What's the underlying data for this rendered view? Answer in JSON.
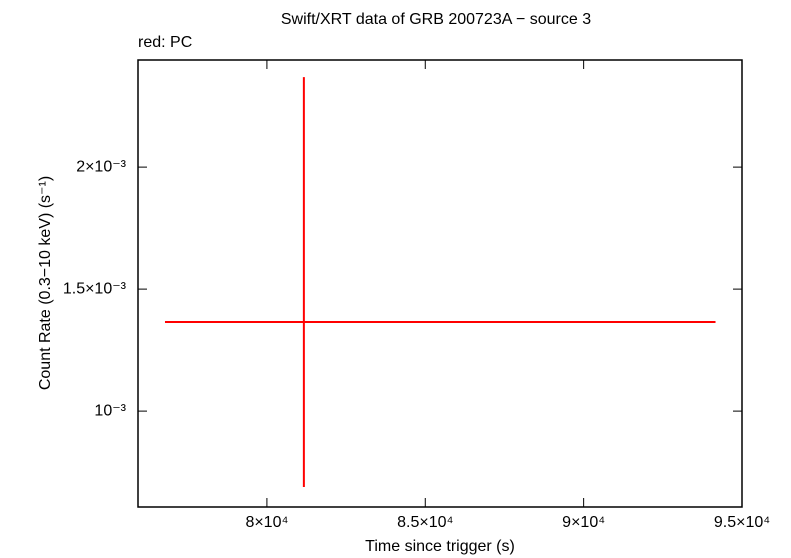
{
  "chart_data": {
    "type": "scatter",
    "title": "Swift/XRT data of GRB 200723A − source 3",
    "subtitle": "red: PC",
    "x_label": "Time since trigger (s)",
    "y_label": "Count Rate (0.3−10 keV) (s⁻¹)",
    "xlim": [
      75930,
      95000
    ],
    "ylim": [
      0.000607,
      0.002439
    ],
    "xticks": [
      {
        "value": 80000,
        "label": "8×10⁴"
      },
      {
        "value": 85000,
        "label": "8.5×10⁴"
      },
      {
        "value": 90000,
        "label": "9×10⁴"
      },
      {
        "value": 95000,
        "label": "9.5×10⁴"
      }
    ],
    "yticks": [
      {
        "value": 0.001,
        "label": "10⁻³"
      },
      {
        "value": 0.0015,
        "label": "1.5×10⁻³"
      },
      {
        "value": 0.002,
        "label": "2×10⁻³"
      }
    ],
    "series": [
      {
        "color": "#ff0000",
        "x": [
          81167
        ],
        "values": [
          0.001365
        ],
        "xerr_minus": [
          4385
        ],
        "xerr_plus": [
          12997
        ],
        "yerr_minus": [
          0.000676
        ],
        "yerr_plus": [
          0.001004
        ]
      }
    ]
  }
}
